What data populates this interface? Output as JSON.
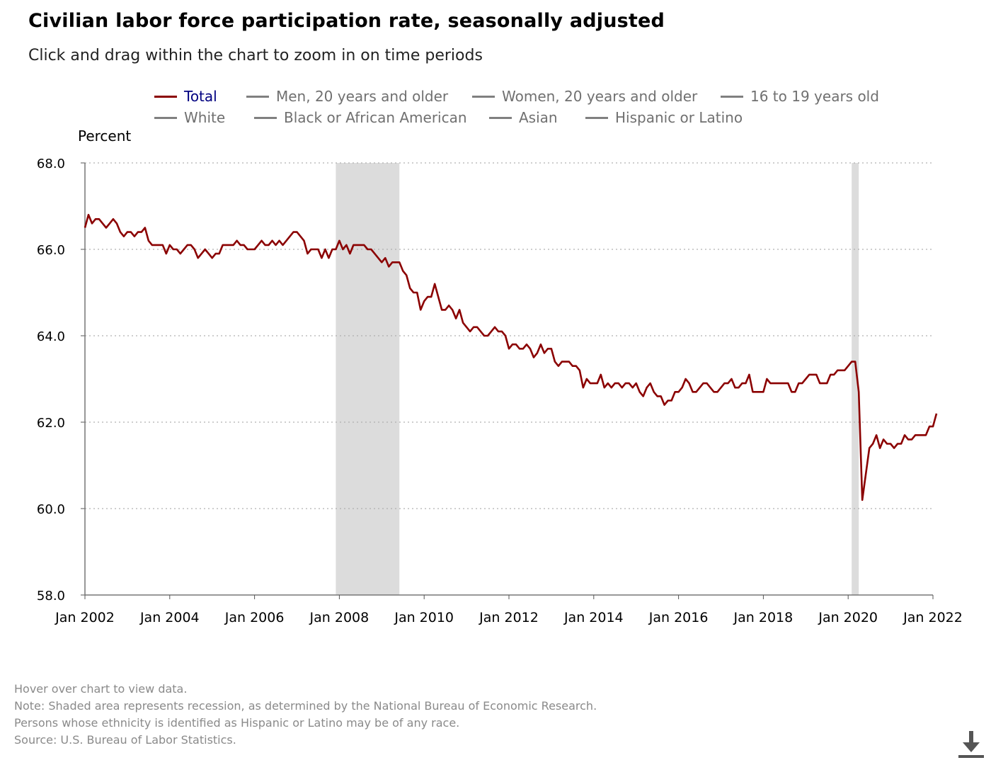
{
  "title": "Civilian labor force participation rate, seasonally adjusted",
  "subtitle": "Click and drag within the chart to zoom in on time periods",
  "legend": [
    {
      "label": "Total",
      "active": true
    },
    {
      "label": "Men, 20 years and older",
      "active": false
    },
    {
      "label": "Women, 20 years and older",
      "active": false
    },
    {
      "label": "16 to 19 years old",
      "active": false
    },
    {
      "label": "White",
      "active": false
    },
    {
      "label": "Black or African American",
      "active": false
    },
    {
      "label": "Asian",
      "active": false
    },
    {
      "label": "Hispanic or Latino",
      "active": false
    }
  ],
  "footnotes": [
    "Hover over chart to view data.",
    "Note: Shaded area represents recession, as determined by the National Bureau of Economic Research.",
    "Persons whose ethnicity is identified as Hispanic or Latino may be of any race.",
    "Source: U.S. Bureau of Labor Statistics."
  ],
  "icons": {
    "download": "download-icon"
  },
  "colors": {
    "series": "#8b0000",
    "recession": "#dcdcdc",
    "legend_active": "#000080",
    "legend_inactive": "#707070",
    "grid": "#b0b0b0"
  },
  "chart_data": {
    "type": "line",
    "ylabel": "Percent",
    "ylim": [
      58,
      68
    ],
    "yticks": [
      "58.0",
      "60.0",
      "62.0",
      "64.0",
      "66.0",
      "68.0"
    ],
    "xticks": [
      "Jan 2002",
      "Jan 2004",
      "Jan 2006",
      "Jan 2008",
      "Jan 2010",
      "Jan 2012",
      "Jan 2014",
      "Jan 2016",
      "Jan 2018",
      "Jan 2020",
      "Jan 2022"
    ],
    "x_start": "Jan 2002",
    "x_end": "Jan 2022",
    "grid": "horizontal dotted",
    "recessions": [
      {
        "start": "Dec 2007",
        "end": "Jun 2009"
      },
      {
        "start": "Feb 2020",
        "end": "Apr 2020"
      }
    ],
    "series": [
      {
        "name": "Total",
        "values": [
          66.5,
          66.8,
          66.6,
          66.7,
          66.7,
          66.6,
          66.5,
          66.6,
          66.7,
          66.6,
          66.4,
          66.3,
          66.4,
          66.4,
          66.3,
          66.4,
          66.4,
          66.5,
          66.2,
          66.1,
          66.1,
          66.1,
          66.1,
          65.9,
          66.1,
          66.0,
          66.0,
          65.9,
          66.0,
          66.1,
          66.1,
          66.0,
          65.8,
          65.9,
          66.0,
          65.9,
          65.8,
          65.9,
          65.9,
          66.1,
          66.1,
          66.1,
          66.1,
          66.2,
          66.1,
          66.1,
          66.0,
          66.0,
          66.0,
          66.1,
          66.2,
          66.1,
          66.1,
          66.2,
          66.1,
          66.2,
          66.1,
          66.2,
          66.3,
          66.4,
          66.4,
          66.3,
          66.2,
          65.9,
          66.0,
          66.0,
          66.0,
          65.8,
          66.0,
          65.8,
          66.0,
          66.0,
          66.2,
          66.0,
          66.1,
          65.9,
          66.1,
          66.1,
          66.1,
          66.1,
          66.0,
          66.0,
          65.9,
          65.8,
          65.7,
          65.8,
          65.6,
          65.7,
          65.7,
          65.7,
          65.5,
          65.4,
          65.1,
          65.0,
          65.0,
          64.6,
          64.8,
          64.9,
          64.9,
          65.2,
          64.9,
          64.6,
          64.6,
          64.7,
          64.6,
          64.4,
          64.6,
          64.3,
          64.2,
          64.1,
          64.2,
          64.2,
          64.1,
          64.0,
          64.0,
          64.1,
          64.2,
          64.1,
          64.1,
          64.0,
          63.7,
          63.8,
          63.8,
          63.7,
          63.7,
          63.8,
          63.7,
          63.5,
          63.6,
          63.8,
          63.6,
          63.7,
          63.7,
          63.4,
          63.3,
          63.4,
          63.4,
          63.4,
          63.3,
          63.3,
          63.2,
          62.8,
          63.0,
          62.9,
          62.9,
          62.9,
          63.1,
          62.8,
          62.9,
          62.8,
          62.9,
          62.9,
          62.8,
          62.9,
          62.9,
          62.8,
          62.9,
          62.7,
          62.6,
          62.8,
          62.9,
          62.7,
          62.6,
          62.6,
          62.4,
          62.5,
          62.5,
          62.7,
          62.7,
          62.8,
          63.0,
          62.9,
          62.7,
          62.7,
          62.8,
          62.9,
          62.9,
          62.8,
          62.7,
          62.7,
          62.8,
          62.9,
          62.9,
          63.0,
          62.8,
          62.8,
          62.9,
          62.9,
          63.1,
          62.7,
          62.7,
          62.7,
          62.7,
          63.0,
          62.9,
          62.9,
          62.9,
          62.9,
          62.9,
          62.9,
          62.7,
          62.7,
          62.9,
          62.9,
          63.0,
          63.1,
          63.1,
          63.1,
          62.9,
          62.9,
          62.9,
          63.1,
          63.1,
          63.2,
          63.2,
          63.2,
          63.3,
          63.4,
          63.4,
          62.7,
          60.2,
          60.8,
          61.4,
          61.5,
          61.7,
          61.4,
          61.6,
          61.5,
          61.5,
          61.4,
          61.5,
          61.5,
          61.7,
          61.6,
          61.6,
          61.7,
          61.7,
          61.7,
          61.7,
          61.9,
          61.9,
          62.2
        ]
      }
    ]
  }
}
